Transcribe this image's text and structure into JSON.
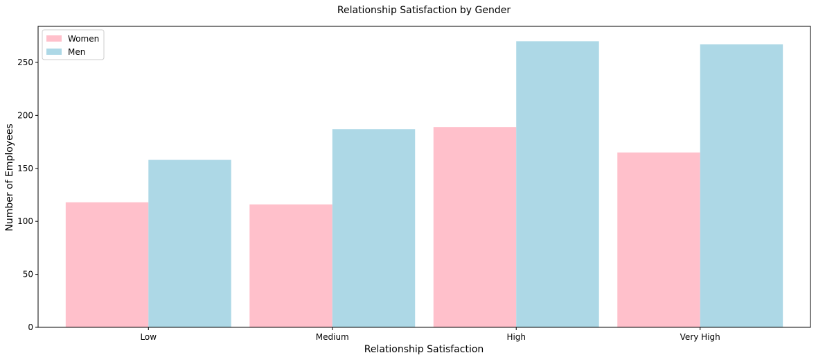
{
  "chart_data": {
    "type": "bar",
    "title": "Relationship Satisfaction by Gender",
    "xlabel": "Relationship Satisfaction",
    "ylabel": "Number of Employees",
    "categories": [
      "Low",
      "Medium",
      "High",
      "Very High"
    ],
    "series": [
      {
        "name": "Women",
        "values": [
          118,
          116,
          189,
          165
        ],
        "color": "#ffc0cb"
      },
      {
        "name": "Men",
        "values": [
          158,
          187,
          270,
          267
        ],
        "color": "#add8e6"
      }
    ],
    "ylim": [
      0,
      284
    ],
    "yticks": [
      0,
      50,
      100,
      150,
      200,
      250
    ],
    "grid": false,
    "legend_position": "top-left"
  }
}
